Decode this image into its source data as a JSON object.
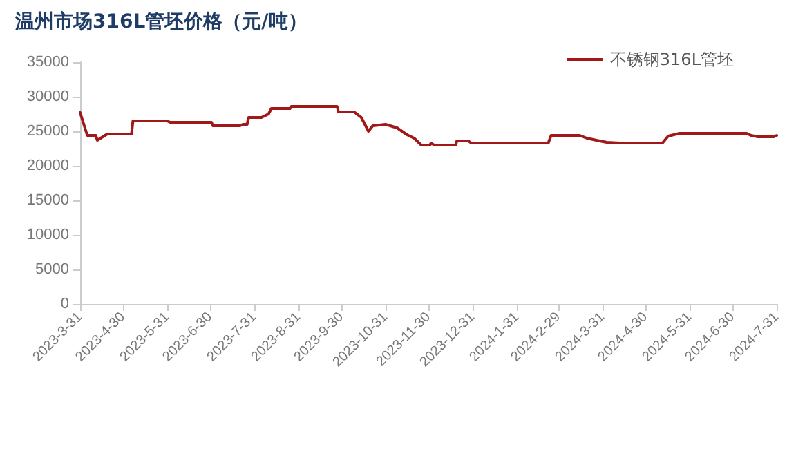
{
  "chart_data": {
    "type": "line",
    "title": "温州市场316L管坯价格（元/吨）",
    "legend": "top right",
    "grid": false,
    "marker": "none",
    "line_style": "solid",
    "ylim": [
      0,
      35000
    ],
    "yticks": [
      0,
      5000,
      10000,
      15000,
      20000,
      25000,
      30000,
      35000
    ],
    "xlim": [
      "2023-03-31",
      "2024-07-31"
    ],
    "xticks": [
      {
        "value": "2023-03-31",
        "label": "2023-3-31"
      },
      {
        "value": "2023-04-30",
        "label": "2023-4-30"
      },
      {
        "value": "2023-05-31",
        "label": "2023-5-31"
      },
      {
        "value": "2023-06-30",
        "label": "2023-6-30"
      },
      {
        "value": "2023-07-31",
        "label": "2023-7-31"
      },
      {
        "value": "2023-08-31",
        "label": "2023-8-31"
      },
      {
        "value": "2023-09-30",
        "label": "2023-9-30"
      },
      {
        "value": "2023-10-31",
        "label": "2023-10-31"
      },
      {
        "value": "2023-11-30",
        "label": "2023-11-30"
      },
      {
        "value": "2023-12-31",
        "label": "2023-12-31"
      },
      {
        "value": "2024-01-31",
        "label": "2024-1-31"
      },
      {
        "value": "2024-02-29",
        "label": "2024-2-29"
      },
      {
        "value": "2024-03-31",
        "label": "2024-3-31"
      },
      {
        "value": "2024-04-30",
        "label": "2024-4-30"
      },
      {
        "value": "2024-05-31",
        "label": "2024-5-31"
      },
      {
        "value": "2024-06-30",
        "label": "2024-6-30"
      },
      {
        "value": "2024-07-31",
        "label": "2024-7-31"
      }
    ],
    "series": [
      {
        "name": "不锈钢316L管坯",
        "color": "#a01818",
        "x": [
          "2023-03-31",
          "2023-04-05",
          "2023-04-11",
          "2023-04-12",
          "2023-04-19",
          "2023-05-06",
          "2023-05-07",
          "2023-05-31",
          "2023-06-02",
          "2023-07-01",
          "2023-07-02",
          "2023-07-21",
          "2023-07-23",
          "2023-07-26",
          "2023-07-27",
          "2023-08-05",
          "2023-08-10",
          "2023-08-12",
          "2023-08-25",
          "2023-08-26",
          "2023-09-27",
          "2023-09-28",
          "2023-10-09",
          "2023-10-14",
          "2023-10-19",
          "2023-10-22",
          "2023-10-31",
          "2023-11-08",
          "2023-11-15",
          "2023-11-20",
          "2023-11-25",
          "2023-12-01",
          "2023-12-02",
          "2023-12-04",
          "2023-12-19",
          "2023-12-20",
          "2023-12-28",
          "2023-12-30",
          "2024-02-22",
          "2024-02-24",
          "2024-03-15",
          "2024-03-20",
          "2024-03-29",
          "2024-04-03",
          "2024-04-12",
          "2024-05-12",
          "2024-05-16",
          "2024-05-24",
          "2024-07-10",
          "2024-07-13",
          "2024-07-18",
          "2024-07-29",
          "2024-07-31"
        ],
        "values": [
          27700,
          24400,
          24400,
          23700,
          24600,
          24600,
          26500,
          26500,
          26300,
          26300,
          25800,
          25800,
          26000,
          26000,
          27000,
          27000,
          27500,
          28300,
          28300,
          28600,
          28600,
          27800,
          27800,
          27000,
          25000,
          25800,
          26000,
          25500,
          24500,
          24000,
          23000,
          23000,
          23300,
          23000,
          23000,
          23600,
          23600,
          23300,
          23300,
          24400,
          24400,
          24000,
          23600,
          23400,
          23300,
          23300,
          24300,
          24700,
          24700,
          24400,
          24200,
          24200,
          24400
        ]
      }
    ]
  }
}
